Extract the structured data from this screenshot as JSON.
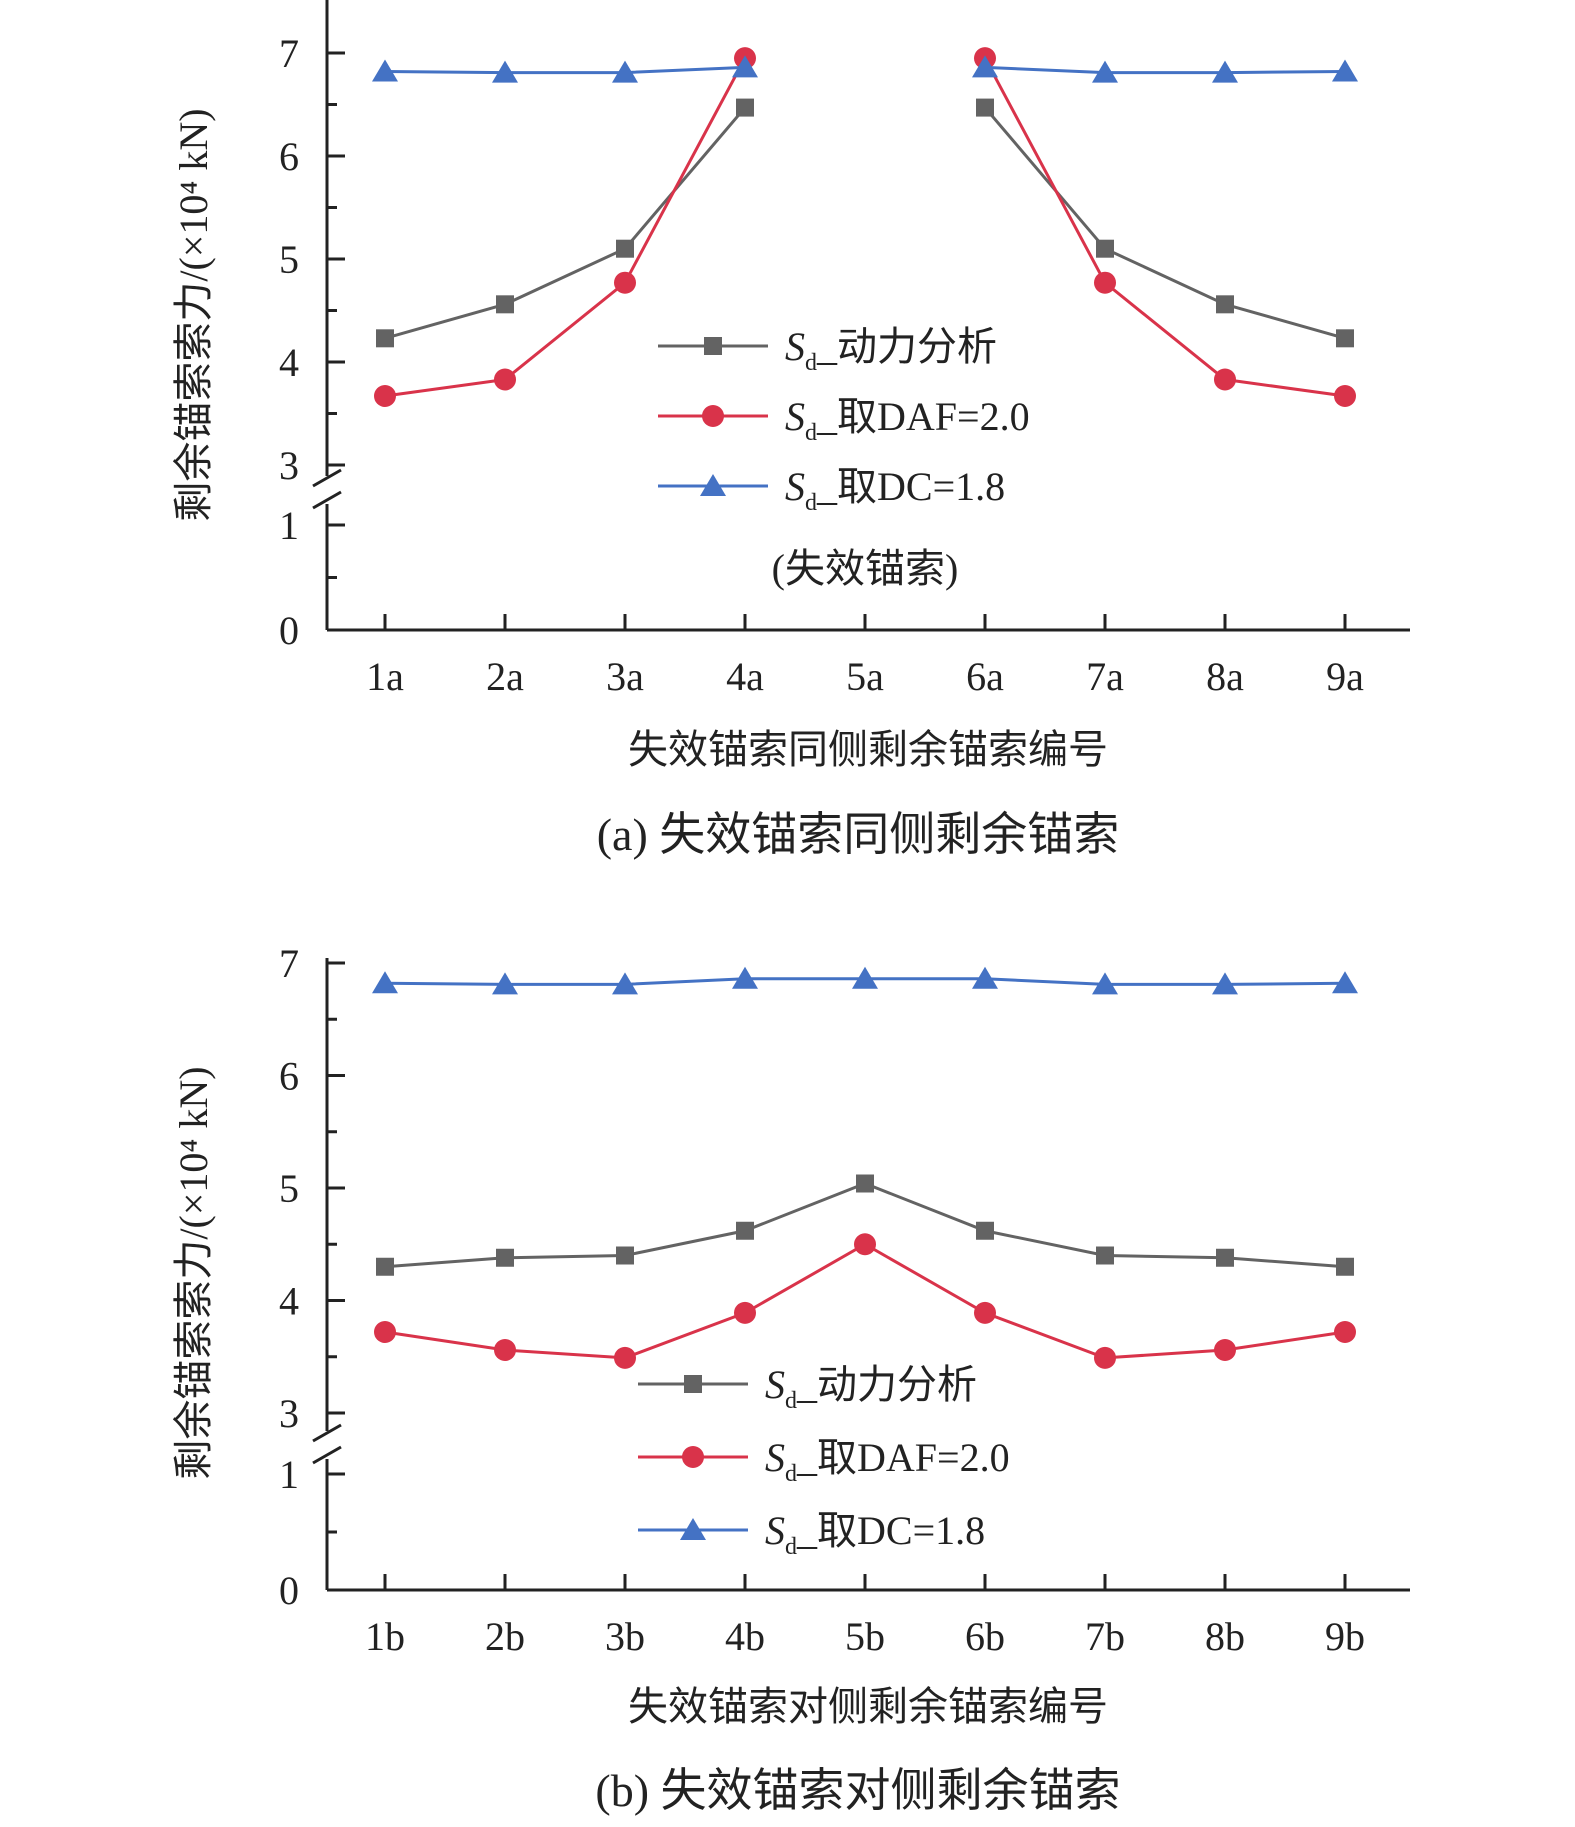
{
  "chart_data": [
    {
      "type": "line",
      "caption": "(a) 失效锚索同侧剩余锚索",
      "xlabel": "失效锚索同侧剩余锚索编号",
      "ylabel": "剩余锚索索力/(×10⁴ kN)",
      "categories": [
        "1a",
        "2a",
        "3a",
        "4a",
        "5a",
        "6a",
        "7a",
        "8a",
        "9a"
      ],
      "yticks": [
        "0",
        "1",
        "3",
        "4",
        "5",
        "6",
        "7"
      ],
      "ylim_lower": [
        0,
        1.1
      ],
      "ylim_upper": [
        2.9,
        7.5
      ],
      "axis_break": true,
      "legend_position": "center-right",
      "annotation": "(失效锚索)",
      "series": [
        {
          "name": "Sd_动力分析",
          "name_sym": "S",
          "name_sub": "d",
          "name_rest": "_动力分析",
          "color": "#636363",
          "marker": "square",
          "values": [
            4.23,
            4.56,
            5.1,
            6.47,
            null,
            6.47,
            5.1,
            4.56,
            4.23
          ]
        },
        {
          "name": "Sd_取DAF=2.0",
          "name_sym": "S",
          "name_sub": "d",
          "name_rest": "_取DAF=2.0",
          "color": "#d9334a",
          "marker": "circle",
          "values": [
            3.67,
            3.83,
            4.77,
            6.95,
            null,
            6.95,
            4.77,
            3.83,
            3.67
          ]
        },
        {
          "name": "Sd_取DC=1.8",
          "name_sym": "S",
          "name_sub": "d",
          "name_rest": "_取DC=1.8",
          "color": "#4472c4",
          "marker": "triangle",
          "values": [
            6.82,
            6.81,
            6.81,
            6.86,
            null,
            6.86,
            6.81,
            6.81,
            6.82
          ]
        }
      ]
    },
    {
      "type": "line",
      "caption": "(b) 失效锚索对侧剩余锚索",
      "xlabel": "失效锚索对侧剩余锚索编号",
      "ylabel": "剩余锚索索力/(×10⁴ kN)",
      "categories": [
        "1b",
        "2b",
        "3b",
        "4b",
        "5b",
        "6b",
        "7b",
        "8b",
        "9b"
      ],
      "yticks": [
        "0",
        "1",
        "3",
        "4",
        "5",
        "6",
        "7"
      ],
      "ylim_lower": [
        0,
        1.1
      ],
      "ylim_upper": [
        2.9,
        7.2
      ],
      "axis_break": true,
      "legend_position": "bottom-center",
      "series": [
        {
          "name": "Sd_动力分析",
          "name_sym": "S",
          "name_sub": "d",
          "name_rest": "_动力分析",
          "color": "#636363",
          "marker": "square",
          "values": [
            4.3,
            4.38,
            4.4,
            4.62,
            5.04,
            4.62,
            4.4,
            4.38,
            4.3
          ]
        },
        {
          "name": "Sd_取DAF=2.0",
          "name_sym": "S",
          "name_sub": "d",
          "name_rest": "_取DAF=2.0",
          "color": "#d9334a",
          "marker": "circle",
          "values": [
            3.72,
            3.56,
            3.49,
            3.89,
            4.5,
            3.89,
            3.49,
            3.56,
            3.72
          ]
        },
        {
          "name": "Sd_取DC=1.8",
          "name_sym": "S",
          "name_sub": "d",
          "name_rest": "_取DC=1.8",
          "color": "#4472c4",
          "marker": "triangle",
          "values": [
            6.82,
            6.81,
            6.81,
            6.86,
            6.86,
            6.86,
            6.81,
            6.81,
            6.82
          ]
        }
      ]
    }
  ]
}
